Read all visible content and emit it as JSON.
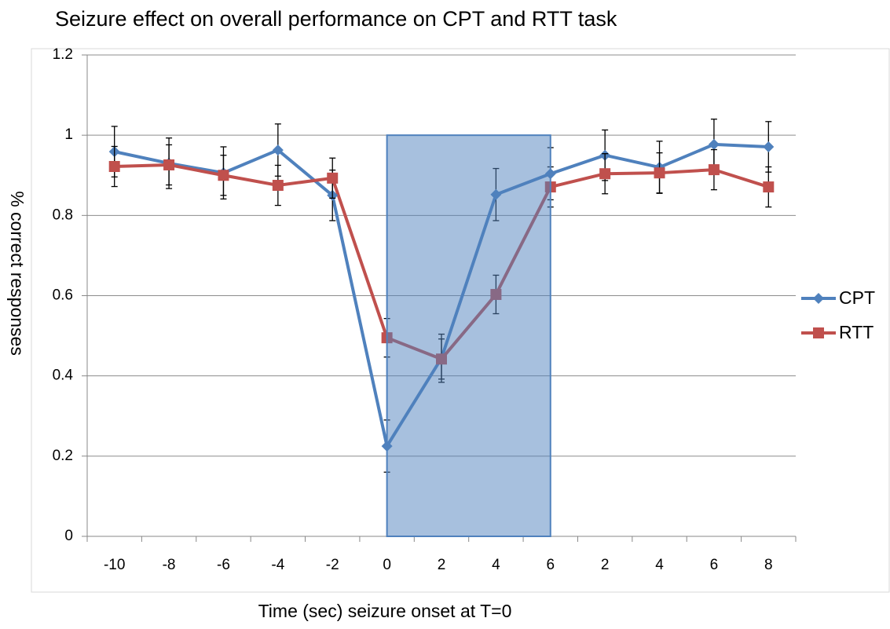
{
  "chart_data": {
    "type": "line",
    "title": "Seizure effect on overall performance on CPT and RTT task",
    "x_label": "Time (sec) seizure onset at T=0",
    "y_label": "% correct responses",
    "categories": [
      "-10",
      "-8",
      "-6",
      "-4",
      "-2",
      "0",
      "2",
      "4",
      "6",
      "2",
      "4",
      "6",
      "8"
    ],
    "series": [
      {
        "name": "CPT",
        "color": "#4f81bd",
        "marker": "diamond",
        "values": [
          0.959,
          0.93,
          0.906,
          0.963,
          0.85,
          0.225,
          0.444,
          0.852,
          0.904,
          0.95,
          0.92,
          0.977,
          0.971
        ],
        "errors": [
          0.063,
          0.063,
          0.065,
          0.065,
          0.063,
          0.065,
          0.06,
          0.065,
          0.065,
          0.063,
          0.065,
          0.063,
          0.063
        ]
      },
      {
        "name": "RTT",
        "color": "#c0504d",
        "marker": "square",
        "values": [
          0.922,
          0.926,
          0.9,
          0.875,
          0.893,
          0.495,
          0.442,
          0.603,
          0.871,
          0.904,
          0.906,
          0.914,
          0.871
        ],
        "errors": [
          0.05,
          0.05,
          0.05,
          0.05,
          0.05,
          0.048,
          0.05,
          0.048,
          0.05,
          0.05,
          0.05,
          0.05,
          0.05
        ]
      }
    ],
    "shade_categories": [
      5,
      8
    ],
    "shade_color": "#4f81bd",
    "ylim": [
      0,
      1.2
    ],
    "yticks": [
      0,
      0.2,
      0.4,
      0.6,
      0.8,
      1,
      1.2
    ],
    "grid": true,
    "legend": "right"
  }
}
